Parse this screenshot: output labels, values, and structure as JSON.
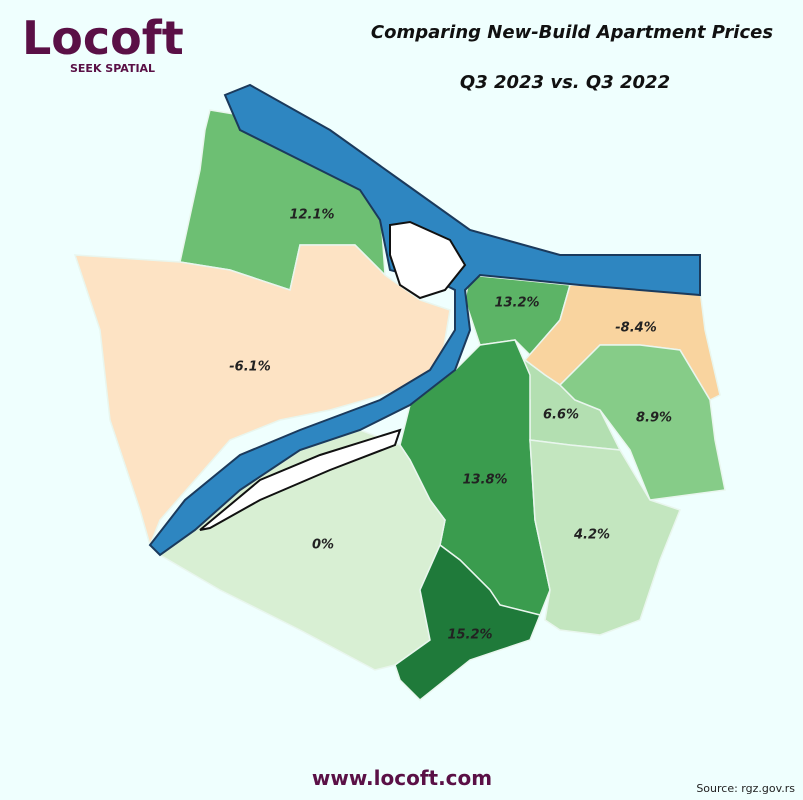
{
  "logo": {
    "name": "Locoft",
    "tagline": "SEEK SPATIAL"
  },
  "header": {
    "title": "Comparing New-Build Apartment Prices",
    "subtitle": "Q3 2023 vs. Q3 2022"
  },
  "regions": [
    {
      "label": "12.1%"
    },
    {
      "label": "-6.1%"
    },
    {
      "label": "13.2%"
    },
    {
      "label": "-8.4%"
    },
    {
      "label": "6.6%"
    },
    {
      "label": "8.9%"
    },
    {
      "label": "13.8%"
    },
    {
      "label": "4.2%"
    },
    {
      "label": "0%"
    },
    {
      "label": "15.2%"
    }
  ],
  "footer": {
    "website": "www.locoft.com",
    "source": "Source: rgz.gov.rs"
  }
}
